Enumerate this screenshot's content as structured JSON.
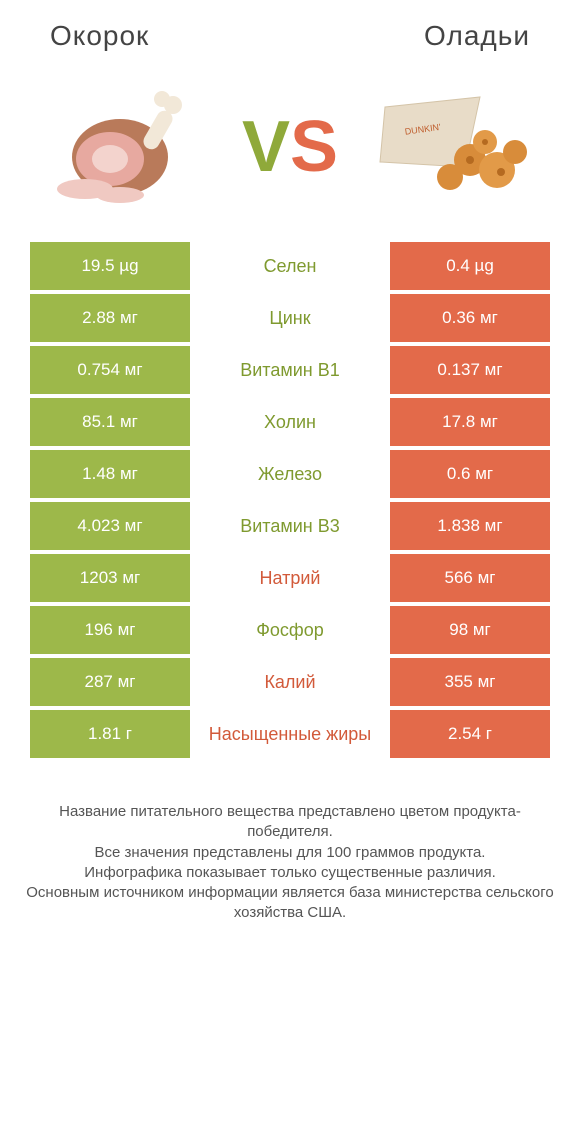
{
  "colors": {
    "left": "#9db84a",
    "right": "#e36a4a",
    "midTextLeft": "#7f9a2f",
    "midTextRight": "#d25a3a"
  },
  "header": {
    "left": "Окорок",
    "right": "Оладьи"
  },
  "vs": {
    "v": "V",
    "s": "S"
  },
  "rows": [
    {
      "l": "19.5 µg",
      "m": "Селен",
      "r": "0.4 µg",
      "win": "left"
    },
    {
      "l": "2.88 мг",
      "m": "Цинк",
      "r": "0.36 мг",
      "win": "left"
    },
    {
      "l": "0.754 мг",
      "m": "Витамин B1",
      "r": "0.137 мг",
      "win": "left"
    },
    {
      "l": "85.1 мг",
      "m": "Холин",
      "r": "17.8 мг",
      "win": "left"
    },
    {
      "l": "1.48 мг",
      "m": "Железо",
      "r": "0.6 мг",
      "win": "left"
    },
    {
      "l": "4.023 мг",
      "m": "Витамин B3",
      "r": "1.838 мг",
      "win": "left"
    },
    {
      "l": "1203 мг",
      "m": "Натрий",
      "r": "566 мг",
      "win": "right"
    },
    {
      "l": "196 мг",
      "m": "Фосфор",
      "r": "98 мг",
      "win": "left"
    },
    {
      "l": "287 мг",
      "m": "Калий",
      "r": "355 мг",
      "win": "right"
    },
    {
      "l": "1.81 г",
      "m": "Насыщенные жиры",
      "r": "2.54 г",
      "win": "right"
    }
  ],
  "footer": [
    "Название питательного вещества представлено цветом продукта-победителя.",
    "Все значения представлены для 100 граммов продукта.",
    "Инфографика показывает только существенные различия.",
    "Основным источником информации является база министерства сельского хозяйства США."
  ]
}
